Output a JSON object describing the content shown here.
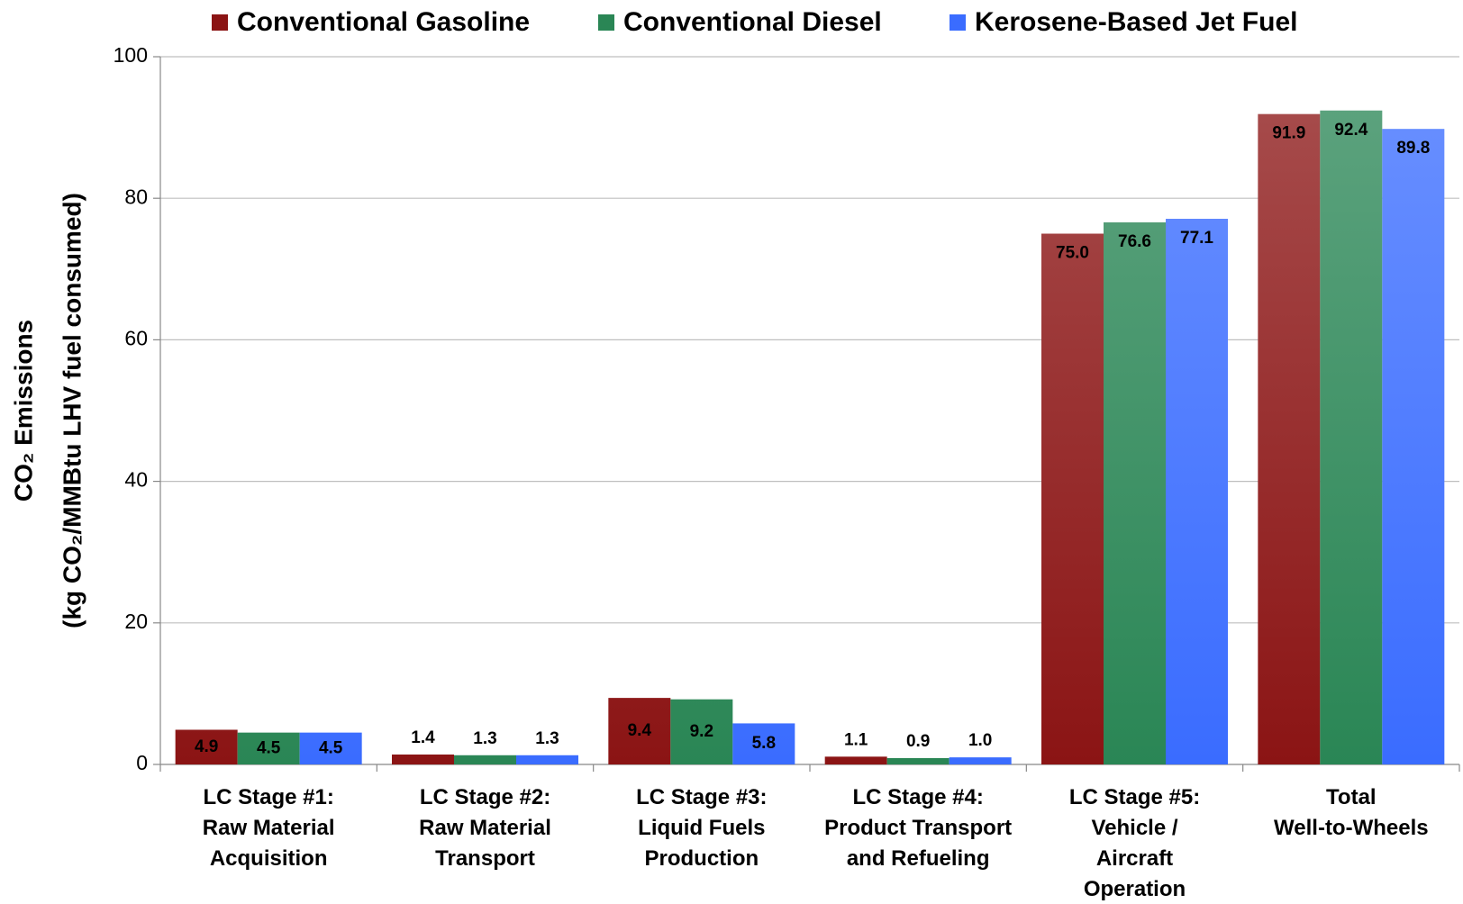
{
  "chart_data": {
    "type": "bar",
    "ylabel": [
      "CO₂ Emissions",
      "(kg CO₂/MMBtu LHV fuel consumed)"
    ],
    "categories": [
      "LC Stage #1:\nRaw Material\nAcquisition",
      "LC Stage #2:\nRaw Material\nTransport",
      "LC Stage #3:\nLiquid Fuels\nProduction",
      "LC Stage #4:\nProduct Transport\nand Refueling",
      "LC Stage #5:\nVehicle /\nAircraft\nOperation",
      "Total\nWell-to-Wheels"
    ],
    "series": [
      {
        "name": "Conventional Gasoline",
        "color": "#8b1414",
        "values": [
          4.9,
          1.4,
          9.4,
          1.1,
          75.0,
          91.9
        ],
        "value_labels": [
          "4.9",
          "1.4",
          "9.4",
          "1.1",
          "75.0",
          "91.9"
        ]
      },
      {
        "name": "Conventional Diesel",
        "color": "#2a8655",
        "values": [
          4.5,
          1.3,
          9.2,
          0.9,
          76.6,
          92.4
        ],
        "value_labels": [
          "4.5",
          "1.3",
          "9.2",
          "0.9",
          "76.6",
          "92.4"
        ]
      },
      {
        "name": "Kerosene-Based Jet Fuel",
        "color": "#3a6cff",
        "values": [
          4.5,
          1.3,
          5.8,
          1.0,
          77.1,
          89.8
        ],
        "value_labels": [
          "4.5",
          "1.3",
          "5.8",
          "1.0",
          "77.1",
          "89.8"
        ]
      }
    ],
    "ylim": [
      0,
      100
    ],
    "yticks": [
      0,
      20,
      40,
      60,
      80,
      100
    ],
    "grid": true,
    "legend": "top"
  }
}
